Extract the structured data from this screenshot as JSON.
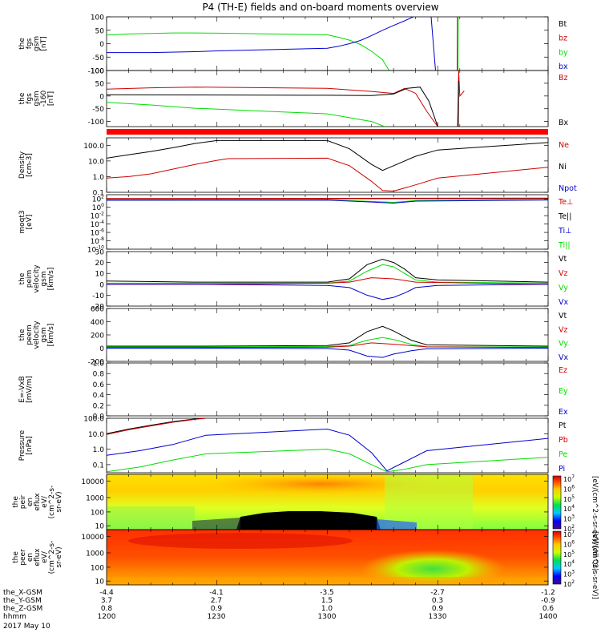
{
  "title": "P4 (TH-E) fields and on-board moments overview",
  "date_label": "2017 May 10",
  "colors": {
    "black": "#000000",
    "red": "#d00000",
    "green": "#00dd00",
    "blue": "#0000cc",
    "bar_red": "#ff0000"
  },
  "ephemeris": {
    "rows": [
      {
        "label": "the_X-GSM",
        "values": [
          "-4.4",
          "-4.1",
          "-3.5",
          "-2.7",
          "-1.2"
        ]
      },
      {
        "label": "the_Y-GSM",
        "values": [
          "3.7",
          "2.7",
          "1.5",
          "0.3",
          "-0.9"
        ]
      },
      {
        "label": "the_Z-GSM",
        "values": [
          "0.8",
          "0.9",
          "1.0",
          "0.9",
          "0.6"
        ]
      },
      {
        "label": "hhmm",
        "values": [
          "1200",
          "1230",
          "1300",
          "1330",
          "1400"
        ]
      }
    ]
  },
  "chart_data": [
    {
      "type": "line",
      "ylabel": [
        "the",
        "fgs",
        "gsm",
        "[nT]"
      ],
      "ylim": [
        -100,
        100
      ],
      "yticks": [
        "100",
        "50",
        "0",
        "-50",
        "-100"
      ],
      "legend": [
        "Bt",
        "bz",
        "by",
        "bx"
      ],
      "legend_colors": [
        "#000000",
        "#d00000",
        "#00dd00",
        "#0000cc"
      ],
      "series": [
        {
          "name": "by",
          "color": "#00dd00",
          "x": [
            1200,
            1210,
            1220,
            1230,
            1240,
            1250,
            1300,
            1305,
            1310,
            1315,
            1320,
            1325,
            1328
          ],
          "y": [
            32,
            36,
            38,
            40,
            40,
            39,
            33,
            24,
            13,
            -3,
            -28,
            -60,
            -100
          ]
        },
        {
          "name": "bx",
          "color": "#0000cc",
          "x": [
            1200,
            1220,
            1240,
            1250,
            1300,
            1305,
            1310,
            1315,
            1320,
            1325,
            1330,
            1335,
            1339
          ],
          "y": [
            -33,
            -33,
            -30,
            -27,
            -17,
            -10,
            0,
            12,
            30,
            50,
            68,
            85,
            100
          ]
        },
        {
          "name": "bx",
          "color": "#0000cc",
          "x": [
            1347,
            1349
          ],
          "y": [
            100,
            -100
          ]
        },
        {
          "name": "bz",
          "color": "#d00000",
          "x": [
            1358.8,
            1358.9
          ],
          "y": [
            -100,
            100
          ]
        },
        {
          "name": "by",
          "color": "#00dd00",
          "x": [
            1359.2,
            1359.3
          ],
          "y": [
            -100,
            100
          ]
        }
      ]
    },
    {
      "type": "line",
      "ylabel": [
        "the",
        "fgs",
        "gsm",
        "-160",
        "[nT]"
      ],
      "ylim": [
        -120,
        100
      ],
      "yticks": [
        "100",
        "50",
        "0",
        "-50",
        "-100"
      ],
      "legend": [
        "Bz",
        "",
        "Bx"
      ],
      "legend_colors": [
        "#d00000",
        "#000000",
        "#000000"
      ],
      "series": [
        {
          "name": "Bz",
          "color": "#d00000",
          "x": [
            1200,
            1220,
            1240,
            1300,
            1320,
            1330,
            1335,
            1340,
            1345,
            1350
          ],
          "y": [
            27,
            32,
            35,
            30,
            18,
            10,
            30,
            10,
            -60,
            -120
          ]
        },
        {
          "name": "Bx",
          "color": "#000000",
          "x": [
            1200,
            1240,
            1300,
            1320,
            1330,
            1336,
            1342,
            1346,
            1350
          ],
          "y": [
            5,
            4,
            3,
            2,
            8,
            30,
            35,
            -20,
            -120
          ]
        },
        {
          "name": "",
          "color": "#00dd00",
          "x": [
            1200,
            1220,
            1240,
            1300,
            1320,
            1326
          ],
          "y": [
            -25,
            -35,
            -48,
            -70,
            -100,
            -120
          ]
        },
        {
          "name": "Bz",
          "color": "#d00000",
          "x": [
            1359,
            1359.5,
            1360,
            1362
          ],
          "y": [
            -120,
            100,
            0,
            20
          ]
        },
        {
          "name": "Bx",
          "color": "#000000",
          "x": [
            1359.3,
            1359.5
          ],
          "y": [
            -120,
            60
          ]
        }
      ]
    },
    {
      "type": "line",
      "scale": "log",
      "ylabel": [
        "Density",
        "[cm-3]"
      ],
      "ylim": [
        0.1,
        300
      ],
      "yticks": [
        "100.0",
        "10.0",
        "1.0",
        "0.1"
      ],
      "legend": [
        "Ne",
        "Ni",
        "Npot"
      ],
      "legend_colors": [
        "#d00000",
        "#000000",
        "#0000cc"
      ],
      "series": [
        {
          "name": "Ni",
          "color": "#000000",
          "x": [
            1200,
            1210,
            1220,
            1230,
            1240,
            1250,
            1300,
            1310,
            1320,
            1325,
            1330,
            1340,
            1350,
            1400
          ],
          "y": [
            15,
            25,
            40,
            70,
            130,
            200,
            200,
            60,
            6,
            2.5,
            5,
            20,
            50,
            150
          ]
        },
        {
          "name": "Ne",
          "color": "#d00000",
          "x": [
            1200,
            1210,
            1220,
            1230,
            1240,
            1250,
            1255,
            1300,
            1310,
            1320,
            1325,
            1330,
            1340,
            1350,
            1400
          ],
          "y": [
            0.8,
            1.0,
            1.5,
            3,
            6,
            11,
            14,
            15,
            5,
            0.5,
            0.13,
            0.12,
            0.3,
            0.8,
            4
          ]
        }
      ]
    },
    {
      "type": "line",
      "scale": "log",
      "ylabel": [
        "moqt3",
        "[eV]"
      ],
      "ylim": [
        1e-10,
        1000.0
      ],
      "yticks": [
        "10^2",
        "10^0",
        "10^-2",
        "10^-4",
        "10^-6",
        "10^-8",
        "10^-10"
      ],
      "legend": [
        "Te⊥",
        "Te||",
        "Ti⊥",
        "Ti||"
      ],
      "legend_colors": [
        "#d00000",
        "#000000",
        "#0000cc",
        "#00dd00"
      ],
      "series": [
        {
          "name": "Ti||",
          "color": "#00dd00",
          "x": [
            1200,
            1300,
            1320,
            1330,
            1340,
            1400
          ],
          "y": [
            50,
            60,
            25,
            15,
            40,
            60
          ]
        },
        {
          "name": "Ti⊥",
          "color": "#0000cc",
          "x": [
            1200,
            1300,
            1320,
            1330,
            1340,
            1400
          ],
          "y": [
            45,
            50,
            18,
            10,
            30,
            55
          ]
        },
        {
          "name": "Te||",
          "color": "#000000",
          "x": [
            1200,
            1300,
            1400
          ],
          "y": [
            100,
            110,
            120
          ]
        },
        {
          "name": "Te⊥",
          "color": "#d00000",
          "x": [
            1200,
            1300,
            1400
          ],
          "y": [
            120,
            140,
            160
          ]
        }
      ]
    },
    {
      "type": "line",
      "ylabel": [
        "the",
        "peim",
        "velocity",
        "gsm",
        "[km/s]"
      ],
      "ylim": [
        -20,
        30
      ],
      "yticks": [
        "30",
        "20",
        "10",
        "0",
        "-10",
        "-20"
      ],
      "legend": [
        "Vt",
        "Vz",
        "Vy",
        "Vx"
      ],
      "legend_colors": [
        "#000000",
        "#d00000",
        "#00dd00",
        "#0000cc"
      ],
      "series": [
        {
          "name": "Vt",
          "color": "#000000",
          "x": [
            1200,
            1240,
            1300,
            1310,
            1318,
            1325,
            1330,
            1335,
            1340,
            1350,
            1400
          ],
          "y": [
            3,
            2,
            2,
            5,
            18,
            23,
            20,
            14,
            6,
            4,
            2
          ]
        },
        {
          "name": "Vy",
          "color": "#00dd00",
          "x": [
            1200,
            1240,
            1300,
            1310,
            1318,
            1325,
            1330,
            1335,
            1340,
            1350,
            1400
          ],
          "y": [
            1,
            1,
            1,
            3,
            12,
            18,
            16,
            10,
            4,
            2,
            1
          ]
        },
        {
          "name": "Vz",
          "color": "#d00000",
          "x": [
            1200,
            1240,
            1300,
            1310,
            1320,
            1330,
            1340,
            1400
          ],
          "y": [
            0,
            0,
            1,
            2,
            6,
            5,
            2,
            0
          ]
        },
        {
          "name": "Vx",
          "color": "#0000cc",
          "x": [
            1200,
            1240,
            1300,
            1310,
            1318,
            1325,
            1330,
            1335,
            1340,
            1350,
            1400
          ],
          "y": [
            0,
            0,
            -1,
            -3,
            -10,
            -14,
            -12,
            -8,
            -3,
            -1,
            0
          ]
        }
      ]
    },
    {
      "type": "line",
      "ylabel": [
        "the",
        "peem",
        "velocity",
        "gsm",
        "[km/s]"
      ],
      "ylim": [
        -200,
        600
      ],
      "yticks": [
        "600",
        "400",
        "200",
        "0",
        "-200"
      ],
      "legend": [
        "Vt",
        "Vz",
        "Vy",
        "Vx"
      ],
      "legend_colors": [
        "#000000",
        "#d00000",
        "#00dd00",
        "#0000cc"
      ],
      "series": [
        {
          "name": "Vt",
          "color": "#000000",
          "x": [
            1200,
            1240,
            1300,
            1310,
            1318,
            1325,
            1330,
            1338,
            1345,
            1400
          ],
          "y": [
            30,
            30,
            40,
            80,
            250,
            330,
            260,
            120,
            50,
            30
          ]
        },
        {
          "name": "Vy",
          "color": "#00dd00",
          "x": [
            1200,
            1240,
            1300,
            1310,
            1318,
            1325,
            1330,
            1338,
            1345,
            1400
          ],
          "y": [
            20,
            20,
            25,
            40,
            120,
            160,
            130,
            60,
            20,
            20
          ]
        },
        {
          "name": "Vz",
          "color": "#d00000",
          "x": [
            1200,
            1240,
            1300,
            1310,
            1320,
            1330,
            1345,
            1400
          ],
          "y": [
            10,
            10,
            15,
            30,
            80,
            60,
            20,
            10
          ]
        },
        {
          "name": "Vx",
          "color": "#0000cc",
          "x": [
            1200,
            1240,
            1300,
            1310,
            1318,
            1325,
            1330,
            1338,
            1345,
            1400
          ],
          "y": [
            0,
            0,
            -5,
            -30,
            -120,
            -140,
            -90,
            -40,
            -10,
            0
          ]
        }
      ]
    },
    {
      "type": "line",
      "ylabel": [
        "E=-VxB",
        "[mV/m]"
      ],
      "ylim": [
        0,
        1
      ],
      "yticks": [
        "1.0",
        "0.8",
        "0.6",
        "0.4",
        "0.2",
        "0.0"
      ],
      "legend": [
        "Ez",
        "Ey",
        "Ex"
      ],
      "legend_colors": [
        "#d00000",
        "#00dd00",
        "#0000cc"
      ],
      "series": []
    },
    {
      "type": "line",
      "scale": "log",
      "ylabel": [
        "Pressure",
        "[nPa]"
      ],
      "ylim": [
        0.03,
        100
      ],
      "yticks": [
        "100.0",
        "10.0",
        "1.0",
        "0.1"
      ],
      "legend": [
        "Pt",
        "Pb",
        "Pe",
        "Pi"
      ],
      "legend_colors": [
        "#000000",
        "#d00000",
        "#00dd00",
        "#0000cc"
      ],
      "series": [
        {
          "name": "Pt",
          "color": "#000000",
          "x": [
            1200,
            1210,
            1220,
            1230,
            1240,
            1245
          ],
          "y": [
            10,
            20,
            35,
            60,
            90,
            100
          ]
        },
        {
          "name": "Pb",
          "color": "#d00000",
          "x": [
            1200,
            1210,
            1220,
            1230,
            1240,
            1245
          ],
          "y": [
            9,
            18,
            32,
            55,
            85,
            100
          ]
        },
        {
          "name": "Pi",
          "color": "#0000cc",
          "x": [
            1200,
            1215,
            1230,
            1245,
            1300,
            1310,
            1320,
            1327,
            1335,
            1345,
            1400
          ],
          "y": [
            0.4,
            0.8,
            2,
            8,
            20,
            8,
            0.6,
            0.04,
            0.15,
            0.8,
            5
          ]
        },
        {
          "name": "Pe",
          "color": "#00dd00",
          "x": [
            1200,
            1215,
            1230,
            1245,
            1300,
            1310,
            1320,
            1327,
            1335,
            1345,
            1400
          ],
          "y": [
            0.035,
            0.07,
            0.2,
            0.5,
            1.0,
            0.5,
            0.1,
            0.035,
            0.05,
            0.1,
            0.3
          ]
        }
      ]
    },
    {
      "type": "heatmap",
      "ylabel": [
        "the",
        "peir",
        "en",
        "eflux",
        "eV/",
        "(cm^2-s-",
        "sr-eV)"
      ],
      "yticks": [
        "10000",
        "1000",
        "100",
        "10"
      ]
    },
    {
      "type": "heatmap",
      "ylabel": [
        "the",
        "peer",
        "en",
        "eflux",
        "eV/",
        "(cm^2-s-",
        "sr-eV)"
      ],
      "yticks": [
        "10000",
        "1000",
        "100",
        "10"
      ]
    }
  ],
  "colorbar_top": {
    "ticks": [
      "10^7",
      "10^6",
      "10^5",
      "10^4",
      "10^3",
      "10^2"
    ],
    "label": "[eV/(cm^2-s-sr-eV)] (All Qs)"
  },
  "colorbar_bottom": {
    "ticks": [
      "10^7",
      "10^6",
      "10^5",
      "10^4",
      "10^3",
      "10^2"
    ],
    "label": "[eV/(cm^2-s-sr-eV)]"
  }
}
